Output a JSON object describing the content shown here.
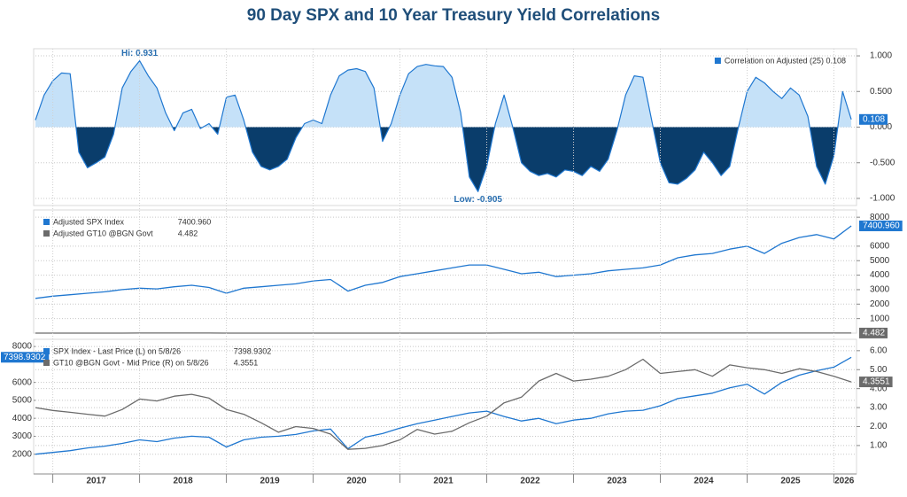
{
  "chart_data": [
    {
      "type": "area",
      "title": "90 Day SPX and 10 Year Treasury Yield Correlations",
      "x": [
        2016.8,
        2016.9,
        2017,
        2017.1,
        2017.2,
        2017.3,
        2017.4,
        2017.5,
        2017.6,
        2017.7,
        2017.8,
        2017.9,
        2018,
        2018.1,
        2018.2,
        2018.3,
        2018.4,
        2018.5,
        2018.6,
        2018.7,
        2018.8,
        2018.9,
        2019,
        2019.1,
        2019.2,
        2019.3,
        2019.4,
        2019.5,
        2019.6,
        2019.7,
        2019.8,
        2019.9,
        2020,
        2020.1,
        2020.2,
        2020.3,
        2020.4,
        2020.5,
        2020.6,
        2020.7,
        2020.8,
        2020.9,
        2021,
        2021.1,
        2021.2,
        2021.3,
        2021.4,
        2021.5,
        2021.6,
        2021.7,
        2021.8,
        2021.9,
        2022,
        2022.1,
        2022.2,
        2022.3,
        2022.4,
        2022.5,
        2022.6,
        2022.7,
        2022.8,
        2022.9,
        2023,
        2023.1,
        2023.2,
        2023.3,
        2023.4,
        2023.5,
        2023.6,
        2023.7,
        2023.8,
        2023.9,
        2024,
        2024.1,
        2024.2,
        2024.3,
        2024.4,
        2024.5,
        2024.6,
        2024.7,
        2024.8,
        2024.9,
        2025,
        2025.1,
        2025.2,
        2025.3,
        2025.4,
        2025.5,
        2025.6,
        2025.7,
        2025.8,
        2025.9,
        2026,
        2026.1,
        2026.2
      ],
      "series": [
        {
          "name": "Correlation on Adjusted (25) 0.108",
          "end_label": "0.108",
          "color": "#1f77d0",
          "fill_positive": "#c5e1f8",
          "fill_negative": "#0a3d6b",
          "values": [
            0.1,
            0.45,
            0.65,
            0.76,
            0.75,
            -0.35,
            -0.57,
            -0.5,
            -0.42,
            -0.1,
            0.55,
            0.78,
            0.931,
            0.72,
            0.55,
            0.2,
            -0.05,
            0.2,
            0.25,
            -0.02,
            0.05,
            -0.1,
            0.42,
            0.45,
            0.1,
            -0.35,
            -0.55,
            -0.6,
            -0.55,
            -0.45,
            -0.15,
            0.05,
            0.1,
            0.05,
            0.45,
            0.72,
            0.8,
            0.82,
            0.78,
            0.55,
            -0.2,
            0.05,
            0.45,
            0.75,
            0.85,
            0.88,
            0.86,
            0.85,
            0.7,
            0.2,
            -0.7,
            -0.905,
            -0.55,
            0.05,
            0.45,
            0,
            -0.5,
            -0.62,
            -0.68,
            -0.65,
            -0.7,
            -0.6,
            -0.62,
            -0.68,
            -0.55,
            -0.62,
            -0.45,
            -0.05,
            0.45,
            0.72,
            0.7,
            0.1,
            -0.5,
            -0.78,
            -0.8,
            -0.72,
            -0.6,
            -0.35,
            -0.5,
            -0.68,
            -0.55,
            0,
            0.5,
            0.7,
            0.62,
            0.5,
            0.4,
            0.55,
            0.45,
            0.15,
            -0.55,
            -0.8,
            -0.4,
            0.5,
            0.108
          ]
        }
      ],
      "high_label": "Hi: 0.931",
      "low_label": "Low: -0.905",
      "xlim": [
        2016.8,
        2026.24
      ],
      "ylim": [
        -1.1,
        1.1
      ],
      "yticks": [
        {
          "value": 1,
          "label": "1.000"
        },
        {
          "value": 0.5,
          "label": "0.500"
        },
        {
          "value": 0,
          "label": "0.000"
        },
        {
          "value": -0.5,
          "label": "-0.500"
        },
        {
          "value": -1,
          "label": "-1.000"
        }
      ],
      "yaxis_side": "right",
      "grid": true,
      "legend": "upper right"
    },
    {
      "type": "line",
      "x": [
        2016.8,
        2017,
        2017.2,
        2017.4,
        2017.6,
        2017.8,
        2018,
        2018.2,
        2018.4,
        2018.6,
        2018.8,
        2019,
        2019.2,
        2019.4,
        2019.6,
        2019.8,
        2020,
        2020.2,
        2020.4,
        2020.6,
        2020.8,
        2021,
        2021.2,
        2021.4,
        2021.6,
        2021.8,
        2022,
        2022.2,
        2022.4,
        2022.6,
        2022.8,
        2023,
        2023.2,
        2023.4,
        2023.6,
        2023.8,
        2024,
        2024.2,
        2024.4,
        2024.6,
        2024.8,
        2025,
        2025.2,
        2025.4,
        2025.6,
        2025.8,
        2026,
        2026.2
      ],
      "series": [
        {
          "name": "Adjusted SPX Index",
          "end_label": "7400.960",
          "color": "#1f77d0",
          "values": [
            2400,
            2550,
            2650,
            2750,
            2850,
            3000,
            3100,
            3050,
            3200,
            3300,
            3150,
            2750,
            3100,
            3200,
            3300,
            3400,
            3600,
            3700,
            2900,
            3300,
            3500,
            3900,
            4100,
            4300,
            4500,
            4700,
            4700,
            4400,
            4100,
            4200,
            3900,
            4000,
            4100,
            4300,
            4400,
            4500,
            4700,
            5200,
            5400,
            5500,
            5800,
            6000,
            5500,
            6200,
            6600,
            6800,
            6500,
            7400.96
          ]
        },
        {
          "name": "Adjusted GT10 @BGN Govt",
          "end_label": "4.482",
          "color": "#6b6b6b",
          "values": [
            3.0,
            2.85,
            2.75,
            2.65,
            2.55,
            2.9,
            3.45,
            3.35,
            3.6,
            3.7,
            3.5,
            2.9,
            2.65,
            2.2,
            1.7,
            2.0,
            1.9,
            1.6,
            0.8,
            0.85,
            1.0,
            1.3,
            1.85,
            1.6,
            1.75,
            2.2,
            2.55,
            3.25,
            3.55,
            4.4,
            4.8,
            4.4,
            4.5,
            4.65,
            5.0,
            5.55,
            4.8,
            4.9,
            5.0,
            4.65,
            5.25,
            5.1,
            5.0,
            4.8,
            5.05,
            4.9,
            4.65,
            4.482
          ]
        }
      ],
      "xlim": [
        2016.8,
        2026.24
      ],
      "ylim": [
        0,
        8500
      ],
      "yticks": [
        1000,
        2000,
        3000,
        4000,
        5000,
        6000,
        8000
      ],
      "yaxis_side": "right",
      "grid": true,
      "legend": "upper left",
      "legend_values": true
    },
    {
      "type": "line",
      "x": [
        2016.8,
        2017,
        2017.2,
        2017.4,
        2017.6,
        2017.8,
        2018,
        2018.2,
        2018.4,
        2018.6,
        2018.8,
        2019,
        2019.2,
        2019.4,
        2019.6,
        2019.8,
        2020,
        2020.2,
        2020.4,
        2020.6,
        2020.8,
        2021,
        2021.2,
        2021.4,
        2021.6,
        2021.8,
        2022,
        2022.2,
        2022.4,
        2022.6,
        2022.8,
        2023,
        2023.2,
        2023.4,
        2023.6,
        2023.8,
        2024,
        2024.2,
        2024.4,
        2024.6,
        2024.8,
        2025,
        2025.2,
        2025.4,
        2025.6,
        2025.8,
        2026,
        2026.2
      ],
      "series": [
        {
          "name": "SPX Index - Last Price (L) on 5/8/26",
          "end_label": "7398.9302",
          "color": "#1f77d0",
          "values": [
            2000,
            2100,
            2200,
            2350,
            2450,
            2600,
            2800,
            2700,
            2900,
            3000,
            2950,
            2400,
            2800,
            2950,
            3000,
            3100,
            3300,
            3400,
            2300,
            2950,
            3150,
            3450,
            3700,
            3900,
            4100,
            4300,
            4400,
            4100,
            3850,
            4000,
            3700,
            3900,
            4000,
            4250,
            4400,
            4450,
            4700,
            5100,
            5250,
            5400,
            5700,
            5900,
            5350,
            6000,
            6400,
            6650,
            6850,
            7398.9302
          ]
        },
        {
          "name": "GT10 @BGN Govt - Mid Price (R) on 5/8/26",
          "end_label": "4.3551",
          "color": "#6b6b6b",
          "axis": "y2",
          "values": [
            3.0,
            2.85,
            2.75,
            2.65,
            2.55,
            2.9,
            3.45,
            3.35,
            3.6,
            3.7,
            3.5,
            2.9,
            2.65,
            2.2,
            1.7,
            2.0,
            1.9,
            1.6,
            0.8,
            0.85,
            1.0,
            1.3,
            1.85,
            1.6,
            1.75,
            2.2,
            2.55,
            3.25,
            3.55,
            4.4,
            4.8,
            4.4,
            4.5,
            4.65,
            5.0,
            5.55,
            4.8,
            4.9,
            5.0,
            4.65,
            5.25,
            5.1,
            5.0,
            4.8,
            5.05,
            4.9,
            4.65,
            4.3551
          ]
        }
      ],
      "xlim": [
        2016.8,
        2026.24
      ],
      "xticks": [
        2017,
        2018,
        2019,
        2020,
        2021,
        2022,
        2023,
        2024,
        2025,
        2026
      ],
      "ylim": [
        900,
        8400
      ],
      "yticks": [
        2000,
        3000,
        4000,
        5000,
        6000,
        8000
      ],
      "y2lim": [
        -0.5,
        6.6
      ],
      "y2ticks": [
        {
          "value": 1,
          "label": "1.00"
        },
        {
          "value": 2,
          "label": "2.00"
        },
        {
          "value": 3,
          "label": "3.00"
        },
        {
          "value": 4,
          "label": "4.00"
        },
        {
          "value": 5,
          "label": "5.00"
        },
        {
          "value": 6,
          "label": "6.00"
        }
      ],
      "yaxis_side": "left",
      "grid": true,
      "legend": "upper left",
      "legend_values": true
    }
  ]
}
